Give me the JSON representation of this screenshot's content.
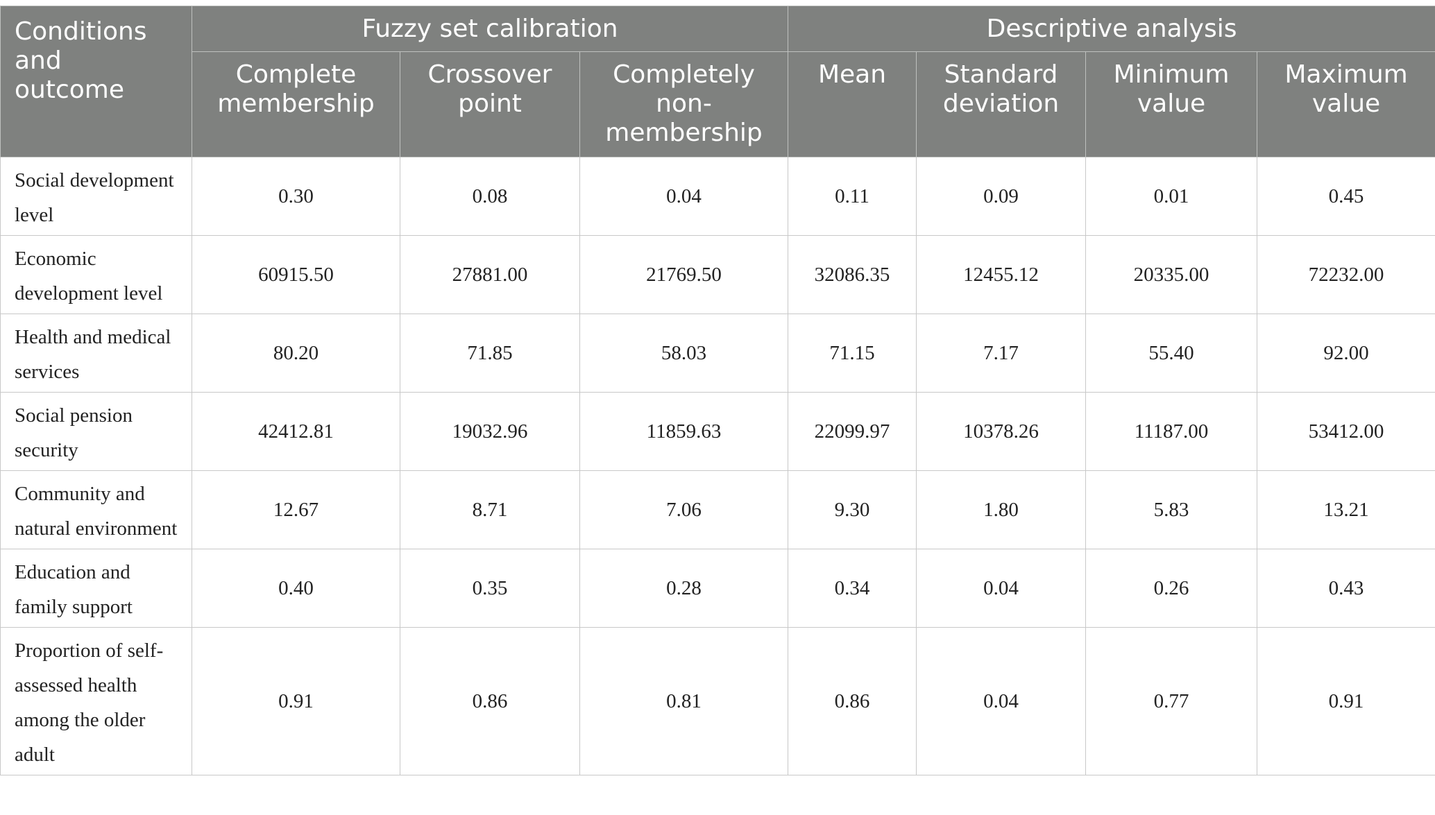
{
  "header": {
    "row_label": "Conditions and outcome",
    "groups": [
      "Fuzzy set calibration",
      "Descriptive analysis"
    ],
    "columns": [
      "Complete membership",
      "Crossover point",
      "Completely non-membership",
      "Mean",
      "Standard deviation",
      "Minimum value",
      "Maximum value"
    ]
  },
  "rows": [
    {
      "label": "Social development level",
      "values": [
        "0.30",
        "0.08",
        "0.04",
        "0.11",
        "0.09",
        "0.01",
        "0.45"
      ]
    },
    {
      "label": "Economic development level",
      "values": [
        "60915.50",
        "27881.00",
        "21769.50",
        "32086.35",
        "12455.12",
        "20335.00",
        "72232.00"
      ]
    },
    {
      "label": "Health and medical services",
      "values": [
        "80.20",
        "71.85",
        "58.03",
        "71.15",
        "7.17",
        "55.40",
        "92.00"
      ]
    },
    {
      "label": "Social pension security",
      "values": [
        "42412.81",
        "19032.96",
        "11859.63",
        "22099.97",
        "10378.26",
        "11187.00",
        "53412.00"
      ]
    },
    {
      "label": "Community and natural environment",
      "values": [
        "12.67",
        "8.71",
        "7.06",
        "9.30",
        "1.80",
        "5.83",
        "13.21"
      ]
    },
    {
      "label": "Education and family support",
      "values": [
        "0.40",
        "0.35",
        "0.28",
        "0.34",
        "0.04",
        "0.26",
        "0.43"
      ]
    },
    {
      "label": "Proportion of self-assessed health among the older adult",
      "values": [
        "0.91",
        "0.86",
        "0.81",
        "0.86",
        "0.04",
        "0.77",
        "0.91"
      ]
    }
  ]
}
